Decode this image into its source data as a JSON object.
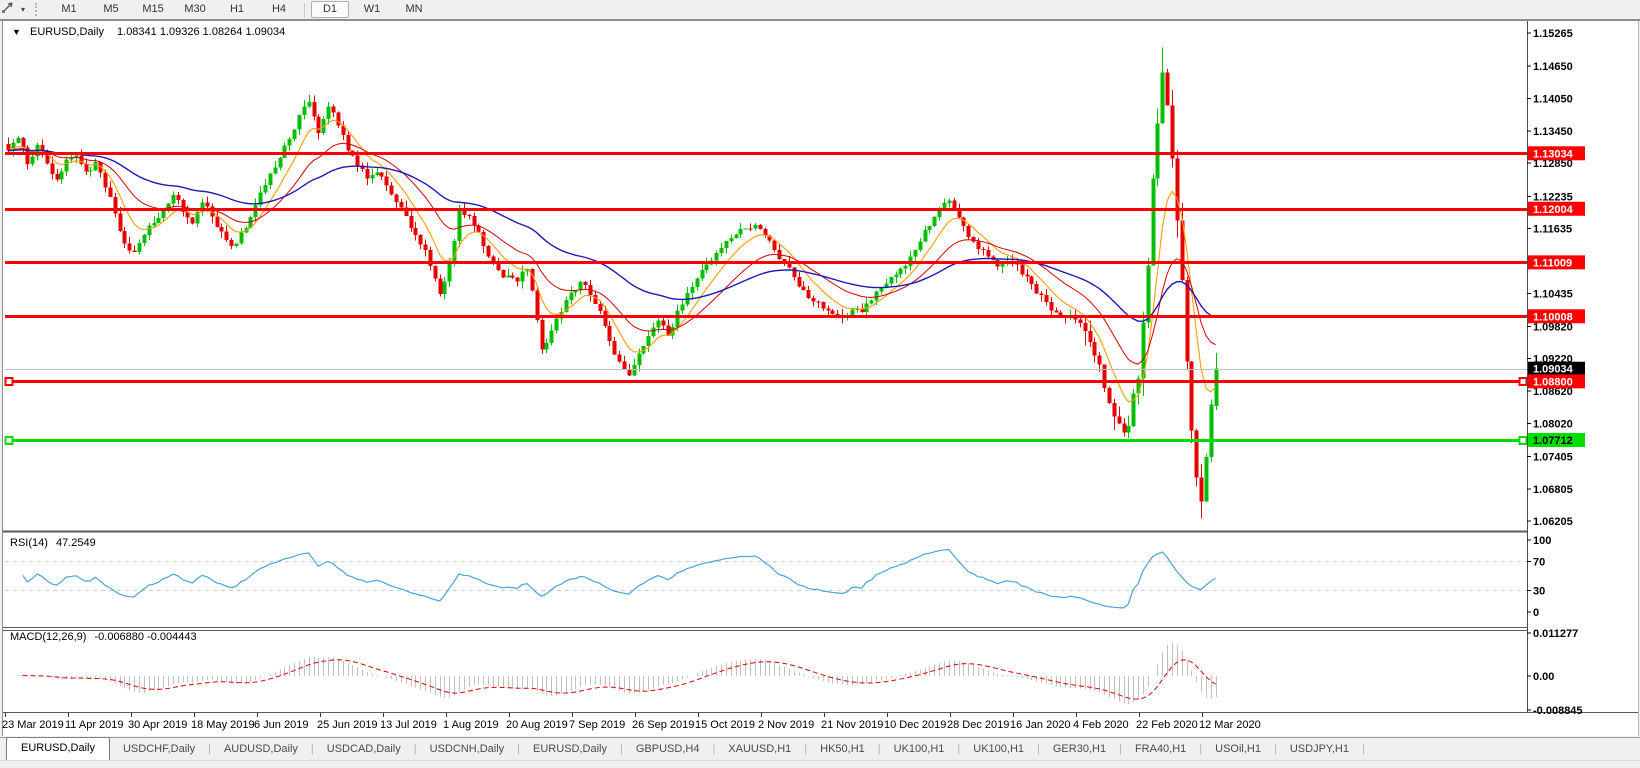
{
  "toolbar": {
    "tool_icon": "draw-line-tool-icon",
    "dropdown_caret": "▾",
    "timeframes": [
      "M1",
      "M5",
      "M15",
      "M30",
      "H1",
      "H4",
      "D1",
      "W1",
      "MN"
    ],
    "selected_timeframe": "D1"
  },
  "chart_header": {
    "caret": "▼",
    "symbol_label": "EURUSD,Daily",
    "ohlc_text": "1.08341 1.09326 1.08264 1.09034"
  },
  "price_axis": {
    "ticks": [
      "1.15265",
      "1.14650",
      "1.14050",
      "1.13450",
      "1.12850",
      "1.12235",
      "1.11635",
      "1.10435",
      "1.09820",
      "1.09220",
      "1.08620",
      "1.08020",
      "1.07405",
      "1.06805",
      "1.06205"
    ],
    "tick_values": [
      1.15265,
      1.1465,
      1.1405,
      1.1345,
      1.1285,
      1.12235,
      1.11635,
      1.10435,
      1.0982,
      1.0922,
      1.0862,
      1.0802,
      1.07405,
      1.06805,
      1.06205
    ],
    "level_labels": [
      {
        "text": "1.13034",
        "value": 1.13034,
        "bg": "#ff0000",
        "fg": "#ffffff"
      },
      {
        "text": "1.12004",
        "value": 1.12004,
        "bg": "#ff0000",
        "fg": "#ffffff"
      },
      {
        "text": "1.11009",
        "value": 1.11009,
        "bg": "#ff0000",
        "fg": "#ffffff"
      },
      {
        "text": "1.10008",
        "value": 1.10008,
        "bg": "#ff0000",
        "fg": "#ffffff"
      },
      {
        "text": "1.09034",
        "value": 1.09034,
        "bg": "#000000",
        "fg": "#ffffff"
      },
      {
        "text": "1.08800",
        "value": 1.088,
        "bg": "#ff0000",
        "fg": "#ffffff"
      },
      {
        "text": "1.07712",
        "value": 1.07712,
        "bg": "#00dd00",
        "fg": "#000000"
      }
    ]
  },
  "date_axis": {
    "labels": [
      "23 Mar 2019",
      "11 Apr 2019",
      "30 Apr 2019",
      "18 May 2019",
      "6 Jun 2019",
      "25 Jun 2019",
      "13 Jul 2019",
      "1 Aug 2019",
      "20 Aug 2019",
      "7 Sep 2019",
      "26 Sep 2019",
      "15 Oct 2019",
      "2 Nov 2019",
      "21 Nov 2019",
      "10 Dec 2019",
      "28 Dec 2019",
      "16 Jan 2020",
      "4 Feb 2020",
      "22 Feb 2020",
      "12 Mar 2020"
    ]
  },
  "rsi_panel": {
    "label": "RSI(14)",
    "value": "47.2549",
    "axis_labels": [
      "100",
      "70",
      "30",
      "0"
    ],
    "axis_values": [
      100,
      70,
      30,
      0
    ],
    "level_lines": [
      70,
      30
    ]
  },
  "macd_panel": {
    "label": "MACD(12,26,9)",
    "values_text": "-0.006880 -0.004443",
    "axis_labels": [
      "0.011277",
      "0.00",
      "-0.008845"
    ],
    "axis_values": [
      0.011277,
      0.0,
      -0.008845
    ]
  },
  "tabs": {
    "active_index": 0,
    "items": [
      "EURUSD,Daily",
      "USDCHF,Daily",
      "AUDUSD,Daily",
      "USDCAD,Daily",
      "USDCNH,Daily",
      "EURUSD,Daily",
      "GBPUSD,H4",
      "XAUUSD,H1",
      "HK50,H1",
      "UK100,H1",
      "UK100,H1",
      "GER30,H1",
      "FRA40,H1",
      "USOil,H1",
      "USDJPY,H1"
    ]
  },
  "chart_data": {
    "type": "candlestick",
    "symbol": "EURUSD",
    "timeframe": "Daily",
    "num_candles": 250,
    "price_range": [
      1.0604,
      1.1549
    ],
    "up_color": "#00bf00",
    "down_color": "#e60000",
    "last_candle": {
      "open": 1.08341,
      "high": 1.09326,
      "low": 1.08264,
      "close": 1.09034
    },
    "horizontal_lines": [
      {
        "price": 1.13034,
        "color": "#ff0000",
        "width": 3,
        "handles": false
      },
      {
        "price": 1.12004,
        "color": "#ff0000",
        "width": 3,
        "handles": false
      },
      {
        "price": 1.11009,
        "color": "#ff0000",
        "width": 3,
        "handles": false
      },
      {
        "price": 1.10008,
        "color": "#ff0000",
        "width": 3,
        "handles": false
      },
      {
        "price": 1.088,
        "color": "#ff0000",
        "width": 3,
        "handles": true
      },
      {
        "price": 1.07712,
        "color": "#00dd00",
        "width": 3,
        "handles": true
      },
      {
        "price": 1.09034,
        "color": "#bdbdbd",
        "width": 1,
        "handles": false,
        "role": "current-price"
      }
    ],
    "moving_averages": [
      {
        "period": 8,
        "color": "#ff9c00",
        "width": 1.1
      },
      {
        "period": 20,
        "color": "#d40000",
        "width": 1.0
      },
      {
        "period": 50,
        "color": "#1a1ab8",
        "width": 1.4
      }
    ],
    "rsi": {
      "period": 14,
      "last_value": 47.2549,
      "color": "#4aa2dc"
    },
    "macd": {
      "fast": 12,
      "slow": 26,
      "signal": 9,
      "last_values": [
        -0.00688,
        -0.004443
      ],
      "hist_color": "#c0c0c0",
      "signal_color": "#e00000"
    },
    "anchors": [
      [
        0,
        1.131
      ],
      [
        2,
        1.133
      ],
      [
        4,
        1.1285
      ],
      [
        6,
        1.132
      ],
      [
        8,
        1.1285
      ],
      [
        10,
        1.1255
      ],
      [
        12,
        1.129
      ],
      [
        14,
        1.13
      ],
      [
        16,
        1.127
      ],
      [
        18,
        1.1285
      ],
      [
        20,
        1.124
      ],
      [
        22,
        1.119
      ],
      [
        24,
        1.1135
      ],
      [
        26,
        1.112
      ],
      [
        28,
        1.115
      ],
      [
        30,
        1.1175
      ],
      [
        32,
        1.12
      ],
      [
        34,
        1.1225
      ],
      [
        36,
        1.1195
      ],
      [
        38,
        1.1175
      ],
      [
        40,
        1.121
      ],
      [
        42,
        1.1185
      ],
      [
        44,
        1.116
      ],
      [
        46,
        1.113
      ],
      [
        48,
        1.1155
      ],
      [
        50,
        1.1185
      ],
      [
        52,
        1.123
      ],
      [
        54,
        1.1265
      ],
      [
        56,
        1.1295
      ],
      [
        58,
        1.133
      ],
      [
        60,
        1.1375
      ],
      [
        62,
        1.14
      ],
      [
        63,
        1.137
      ],
      [
        64,
        1.134
      ],
      [
        66,
        1.139
      ],
      [
        68,
        1.1355
      ],
      [
        70,
        1.131
      ],
      [
        72,
        1.128
      ],
      [
        74,
        1.1255
      ],
      [
        76,
        1.127
      ],
      [
        78,
        1.1245
      ],
      [
        80,
        1.1215
      ],
      [
        82,
        1.1185
      ],
      [
        84,
        1.115
      ],
      [
        86,
        1.1125
      ],
      [
        88,
        1.107
      ],
      [
        89,
        1.104
      ],
      [
        90,
        1.1065
      ],
      [
        92,
        1.114
      ],
      [
        93,
        1.12
      ],
      [
        95,
        1.1185
      ],
      [
        97,
        1.1155
      ],
      [
        99,
        1.111
      ],
      [
        101,
        1.1085
      ],
      [
        103,
        1.1075
      ],
      [
        105,
        1.1065
      ],
      [
        107,
        1.109
      ],
      [
        109,
        1.0995
      ],
      [
        110,
        1.094
      ],
      [
        112,
        1.0975
      ],
      [
        114,
        1.101
      ],
      [
        116,
        1.1045
      ],
      [
        118,
        1.1065
      ],
      [
        120,
        1.104
      ],
      [
        122,
        1.101
      ],
      [
        124,
        1.0955
      ],
      [
        126,
        1.0915
      ],
      [
        128,
        1.089
      ],
      [
        130,
        1.093
      ],
      [
        132,
        1.0965
      ],
      [
        134,
        1.0995
      ],
      [
        136,
        1.0965
      ],
      [
        138,
        1.101
      ],
      [
        140,
        1.1045
      ],
      [
        142,
        1.107
      ],
      [
        144,
        1.1095
      ],
      [
        146,
        1.112
      ],
      [
        148,
        1.114
      ],
      [
        150,
        1.1155
      ],
      [
        152,
        1.1165
      ],
      [
        154,
        1.117
      ],
      [
        156,
        1.115
      ],
      [
        158,
        1.1125
      ],
      [
        160,
        1.11
      ],
      [
        162,
        1.1075
      ],
      [
        164,
        1.105
      ],
      [
        166,
        1.103
      ],
      [
        168,
        1.1015
      ],
      [
        170,
        1.1005
      ],
      [
        172,
        1.0998
      ],
      [
        174,
        1.1015
      ],
      [
        176,
        1.1008
      ],
      [
        178,
        1.103
      ],
      [
        180,
        1.1055
      ],
      [
        182,
        1.1075
      ],
      [
        184,
        1.109
      ],
      [
        186,
        1.111
      ],
      [
        188,
        1.114
      ],
      [
        190,
        1.117
      ],
      [
        192,
        1.12
      ],
      [
        194,
        1.1215
      ],
      [
        196,
        1.1185
      ],
      [
        198,
        1.115
      ],
      [
        200,
        1.1125
      ],
      [
        202,
        1.111
      ],
      [
        204,
        1.1095
      ],
      [
        206,
        1.1105
      ],
      [
        208,
        1.1095
      ],
      [
        210,
        1.1075
      ],
      [
        212,
        1.1045
      ],
      [
        214,
        1.1025
      ],
      [
        216,
        1.101
      ],
      [
        218,
        1.1
      ],
      [
        220,
        1.0995
      ],
      [
        222,
        1.0975
      ],
      [
        224,
        1.0925
      ],
      [
        226,
        1.087
      ],
      [
        228,
        1.0815
      ],
      [
        230,
        1.0785
      ],
      [
        231,
        1.08
      ],
      [
        232,
        1.0855
      ],
      [
        233,
        1.0885
      ],
      [
        234,
        1.0985
      ],
      [
        235,
        1.1095
      ],
      [
        236,
        1.126
      ],
      [
        237,
        1.1355
      ],
      [
        238,
        1.1455
      ],
      [
        239,
        1.139
      ],
      [
        240,
        1.129
      ],
      [
        241,
        1.1175
      ],
      [
        242,
        1.1065
      ],
      [
        243,
        1.092
      ],
      [
        244,
        1.079
      ],
      [
        245,
        1.07
      ],
      [
        246,
        1.0655
      ],
      [
        247,
        1.074
      ],
      [
        248,
        1.0834
      ],
      [
        249,
        1.0903
      ]
    ]
  }
}
